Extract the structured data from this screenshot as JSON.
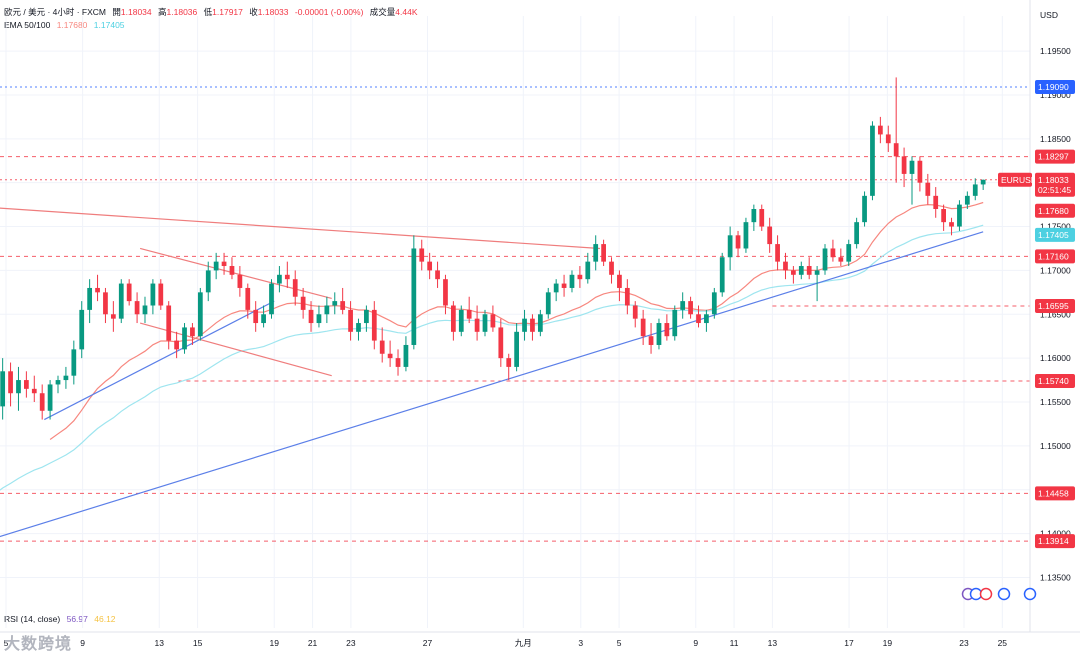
{
  "header": {
    "symbol": "欧元 / 美元 · 4小时 · FXCM",
    "open_label": "開",
    "open": "1.18034",
    "high_label": "高",
    "high": "1.18036",
    "low_label": "低",
    "low": "1.17917",
    "close_label": "收",
    "close": "1.18033",
    "change": "-0.00001 (-0.00%)",
    "volume_label": "成交量",
    "volume": "4.44K",
    "ema_label": "EMA 50/100",
    "ema50": "1.17680",
    "ema100": "1.17405"
  },
  "rsi": {
    "label": "RSI (14, close)",
    "value": "56.97",
    "ma": "46.12"
  },
  "currency": "USD",
  "watermark": "大数跨境",
  "colors": {
    "up": "#089981",
    "down": "#f23645",
    "ema50": "#f7877f",
    "ema100": "#9ee5ef",
    "trend_blue": "#5b7fe8",
    "resistance": "#ef7d7d",
    "level_red": "#f23645",
    "level_blue": "#2962ff",
    "grid": "#f0f3fa"
  },
  "chart_data": {
    "type": "candlestick",
    "y_ticks": [
      "1.19500",
      "1.19000",
      "1.18500",
      "1.18000",
      "1.17500",
      "1.17000",
      "1.16500",
      "1.16000",
      "1.15500",
      "1.15000",
      "1.14500",
      "1.14000",
      "1.13500"
    ],
    "x_ticks": [
      "5",
      "9",
      "13",
      "15",
      "19",
      "21",
      "23",
      "27",
      "九月",
      "3",
      "5",
      "9",
      "11",
      "13",
      "17",
      "19",
      "23",
      "25"
    ],
    "x_tick_days": [
      5,
      9,
      13,
      15,
      19,
      21,
      23,
      27,
      32,
      35,
      37,
      41,
      43,
      45,
      49,
      51,
      55,
      57
    ],
    "ylim": [
      1.133,
      1.199
    ],
    "price_tags": [
      {
        "label": "1.19090",
        "value": 1.1909,
        "color": "#2962ff",
        "line": "dotted"
      },
      {
        "label": "1.18297",
        "value": 1.18297,
        "color": "#f23645",
        "line": "dashed"
      },
      {
        "label": "EURUSD",
        "sub": "1.18033",
        "countdown": "02:51:45",
        "value": 1.18033,
        "color": "#f23645",
        "line": "dotted"
      },
      {
        "label": "1.17680",
        "value": 1.1768,
        "color": "#f23645",
        "line": "none"
      },
      {
        "label": "1.17405",
        "value": 1.17405,
        "color": "#4dd0e1",
        "line": "none"
      },
      {
        "label": "1.17160",
        "value": 1.1716,
        "color": "#f23645",
        "line": "dashed"
      },
      {
        "label": "1.16595",
        "value": 1.16595,
        "color": "#f23645",
        "line": "dashed"
      },
      {
        "label": "1.15740",
        "value": 1.1574,
        "color": "#f23645",
        "line": "dashed"
      },
      {
        "label": "1.14458",
        "value": 1.14458,
        "color": "#f23645",
        "line": "dashed"
      },
      {
        "label": "1.13914",
        "value": 1.13914,
        "color": "#f23645",
        "line": "dashed"
      }
    ],
    "candles_day_range": [
      4,
      56
    ],
    "candles": [
      [
        1.1425,
        1.147,
        1.1395,
        1.144
      ],
      [
        1.144,
        1.156,
        1.1425,
        1.1545
      ],
      [
        1.1545,
        1.16,
        1.153,
        1.1585
      ],
      [
        1.1585,
        1.1595,
        1.1545,
        1.156
      ],
      [
        1.156,
        1.159,
        1.154,
        1.1575
      ],
      [
        1.1575,
        1.1585,
        1.1555,
        1.1565
      ],
      [
        1.1565,
        1.158,
        1.155,
        1.156
      ],
      [
        1.156,
        1.157,
        1.153,
        1.154
      ],
      [
        1.154,
        1.1575,
        1.153,
        1.157
      ],
      [
        1.157,
        1.158,
        1.156,
        1.1575
      ],
      [
        1.1575,
        1.159,
        1.1565,
        1.158
      ],
      [
        1.158,
        1.162,
        1.157,
        1.161
      ],
      [
        1.161,
        1.1665,
        1.16,
        1.1655
      ],
      [
        1.1655,
        1.169,
        1.164,
        1.168
      ],
      [
        1.168,
        1.1695,
        1.1665,
        1.1675
      ],
      [
        1.1675,
        1.168,
        1.164,
        1.165
      ],
      [
        1.165,
        1.1665,
        1.163,
        1.1645
      ],
      [
        1.1645,
        1.169,
        1.164,
        1.1685
      ],
      [
        1.1685,
        1.169,
        1.166,
        1.1665
      ],
      [
        1.1665,
        1.1675,
        1.164,
        1.165
      ],
      [
        1.165,
        1.167,
        1.164,
        1.166
      ],
      [
        1.166,
        1.169,
        1.165,
        1.1685
      ],
      [
        1.1685,
        1.169,
        1.1655,
        1.166
      ],
      [
        1.166,
        1.1665,
        1.161,
        1.162
      ],
      [
        1.162,
        1.163,
        1.16,
        1.161
      ],
      [
        1.161,
        1.164,
        1.1605,
        1.1635
      ],
      [
        1.1635,
        1.164,
        1.1615,
        1.1625
      ],
      [
        1.1625,
        1.168,
        1.162,
        1.1675
      ],
      [
        1.1675,
        1.171,
        1.1665,
        1.17
      ],
      [
        1.17,
        1.172,
        1.169,
        1.171
      ],
      [
        1.171,
        1.172,
        1.1695,
        1.1705
      ],
      [
        1.1705,
        1.1715,
        1.169,
        1.1695
      ],
      [
        1.1695,
        1.1705,
        1.167,
        1.168
      ],
      [
        1.168,
        1.1685,
        1.1645,
        1.1655
      ],
      [
        1.1655,
        1.1665,
        1.163,
        1.164
      ],
      [
        1.164,
        1.166,
        1.1635,
        1.165
      ],
      [
        1.165,
        1.169,
        1.1645,
        1.1685
      ],
      [
        1.1685,
        1.1705,
        1.1675,
        1.1695
      ],
      [
        1.1695,
        1.171,
        1.168,
        1.169
      ],
      [
        1.169,
        1.17,
        1.166,
        1.167
      ],
      [
        1.167,
        1.168,
        1.1645,
        1.1655
      ],
      [
        1.1655,
        1.1665,
        1.163,
        1.164
      ],
      [
        1.164,
        1.166,
        1.1635,
        1.165
      ],
      [
        1.165,
        1.167,
        1.164,
        1.166
      ],
      [
        1.166,
        1.1675,
        1.165,
        1.1665
      ],
      [
        1.1665,
        1.168,
        1.165,
        1.1655
      ],
      [
        1.1655,
        1.1665,
        1.162,
        1.163
      ],
      [
        1.163,
        1.1645,
        1.162,
        1.164
      ],
      [
        1.164,
        1.166,
        1.163,
        1.1655
      ],
      [
        1.1655,
        1.1665,
        1.161,
        1.162
      ],
      [
        1.162,
        1.1635,
        1.1595,
        1.1605
      ],
      [
        1.1605,
        1.162,
        1.159,
        1.16
      ],
      [
        1.16,
        1.161,
        1.158,
        1.159
      ],
      [
        1.159,
        1.1625,
        1.1585,
        1.1615
      ],
      [
        1.1615,
        1.174,
        1.161,
        1.1725
      ],
      [
        1.1725,
        1.1735,
        1.17,
        1.171
      ],
      [
        1.171,
        1.172,
        1.169,
        1.17
      ],
      [
        1.17,
        1.171,
        1.168,
        1.169
      ],
      [
        1.169,
        1.1695,
        1.165,
        1.166
      ],
      [
        1.166,
        1.1665,
        1.162,
        1.163
      ],
      [
        1.163,
        1.166,
        1.1625,
        1.1655
      ],
      [
        1.1655,
        1.167,
        1.164,
        1.1645
      ],
      [
        1.1645,
        1.166,
        1.162,
        1.163
      ],
      [
        1.163,
        1.1655,
        1.1625,
        1.165
      ],
      [
        1.165,
        1.166,
        1.163,
        1.1635
      ],
      [
        1.1635,
        1.1645,
        1.159,
        1.16
      ],
      [
        1.16,
        1.1605,
        1.1575,
        1.159
      ],
      [
        1.159,
        1.164,
        1.1585,
        1.163
      ],
      [
        1.163,
        1.1655,
        1.162,
        1.1645
      ],
      [
        1.1645,
        1.165,
        1.162,
        1.163
      ],
      [
        1.163,
        1.1655,
        1.1625,
        1.165
      ],
      [
        1.165,
        1.168,
        1.1645,
        1.1675
      ],
      [
        1.1675,
        1.169,
        1.1665,
        1.1685
      ],
      [
        1.1685,
        1.1695,
        1.167,
        1.168
      ],
      [
        1.168,
        1.17,
        1.1675,
        1.1695
      ],
      [
        1.1695,
        1.1705,
        1.168,
        1.169
      ],
      [
        1.169,
        1.172,
        1.1685,
        1.171
      ],
      [
        1.171,
        1.174,
        1.17,
        1.173
      ],
      [
        1.173,
        1.1735,
        1.1705,
        1.171
      ],
      [
        1.171,
        1.1715,
        1.1685,
        1.1695
      ],
      [
        1.1695,
        1.17,
        1.1665,
        1.168
      ],
      [
        1.168,
        1.169,
        1.165,
        1.166
      ],
      [
        1.166,
        1.1665,
        1.1635,
        1.1645
      ],
      [
        1.1645,
        1.1655,
        1.1615,
        1.1625
      ],
      [
        1.1625,
        1.164,
        1.1605,
        1.1615
      ],
      [
        1.1615,
        1.1645,
        1.161,
        1.164
      ],
      [
        1.164,
        1.165,
        1.162,
        1.1625
      ],
      [
        1.1625,
        1.166,
        1.162,
        1.1655
      ],
      [
        1.1655,
        1.1675,
        1.1645,
        1.1665
      ],
      [
        1.1665,
        1.167,
        1.1645,
        1.165
      ],
      [
        1.165,
        1.166,
        1.1635,
        1.164
      ],
      [
        1.164,
        1.1655,
        1.163,
        1.165
      ],
      [
        1.165,
        1.168,
        1.1645,
        1.1675
      ],
      [
        1.1675,
        1.172,
        1.167,
        1.1715
      ],
      [
        1.1715,
        1.175,
        1.17,
        1.174
      ],
      [
        1.174,
        1.1745,
        1.1715,
        1.1725
      ],
      [
        1.1725,
        1.176,
        1.172,
        1.1755
      ],
      [
        1.1755,
        1.1775,
        1.1745,
        1.177
      ],
      [
        1.177,
        1.1775,
        1.1745,
        1.175
      ],
      [
        1.175,
        1.176,
        1.172,
        1.173
      ],
      [
        1.173,
        1.174,
        1.17,
        1.171
      ],
      [
        1.171,
        1.172,
        1.169,
        1.17
      ],
      [
        1.17,
        1.1705,
        1.1685,
        1.1695
      ],
      [
        1.1695,
        1.171,
        1.169,
        1.1705
      ],
      [
        1.1705,
        1.1715,
        1.169,
        1.1695
      ],
      [
        1.1695,
        1.1705,
        1.1665,
        1.17
      ],
      [
        1.17,
        1.173,
        1.1695,
        1.1725
      ],
      [
        1.1725,
        1.1735,
        1.171,
        1.1715
      ],
      [
        1.1715,
        1.1725,
        1.1705,
        1.171
      ],
      [
        1.171,
        1.1735,
        1.1705,
        1.173
      ],
      [
        1.173,
        1.176,
        1.1725,
        1.1755
      ],
      [
        1.1755,
        1.179,
        1.175,
        1.1785
      ],
      [
        1.1785,
        1.187,
        1.178,
        1.1865
      ],
      [
        1.1865,
        1.1875,
        1.1845,
        1.1855
      ],
      [
        1.1855,
        1.1865,
        1.1835,
        1.1845
      ],
      [
        1.1845,
        1.192,
        1.18,
        1.183
      ],
      [
        1.183,
        1.184,
        1.1795,
        1.181
      ],
      [
        1.181,
        1.183,
        1.1775,
        1.1825
      ],
      [
        1.1825,
        1.183,
        1.179,
        1.18
      ],
      [
        1.18,
        1.181,
        1.1775,
        1.1785
      ],
      [
        1.1785,
        1.1795,
        1.176,
        1.177
      ],
      [
        1.177,
        1.1775,
        1.1745,
        1.1755
      ],
      [
        1.1755,
        1.176,
        1.174,
        1.175
      ],
      [
        1.175,
        1.178,
        1.1745,
        1.1775
      ],
      [
        1.1775,
        1.179,
        1.177,
        1.1785
      ],
      [
        1.1785,
        1.1805,
        1.178,
        1.1798
      ],
      [
        1.1798,
        1.18036,
        1.17917,
        1.18033
      ]
    ],
    "lines": [
      {
        "name": "",
        "kind": "support",
        "from": [
          4,
          1.1392
        ],
        "to": [
          56,
          1.1744
        ]
      },
      {
        "name": "",
        "kind": "support",
        "from": [
          7,
          1.153
        ],
        "to": [
          19,
          1.1665
        ]
      },
      {
        "name": "",
        "kind": "resistance",
        "from": [
          4,
          1.1772
        ],
        "to": [
          36,
          1.1725
        ]
      },
      {
        "name": "",
        "kind": "channel",
        "from": [
          12,
          1.1725
        ],
        "to": [
          22,
          1.1668
        ]
      },
      {
        "name": "",
        "kind": "channel",
        "from": [
          12,
          1.164
        ],
        "to": [
          22,
          1.158
        ]
      },
      {
        "name": "",
        "kind": "level",
        "from": [
          45,
          1.16595
        ],
        "to": [
          59,
          1.16595
        ]
      },
      {
        "name": "",
        "kind": "level",
        "from": [
          14,
          1.1574
        ],
        "to": [
          59,
          1.1574
        ]
      }
    ]
  }
}
